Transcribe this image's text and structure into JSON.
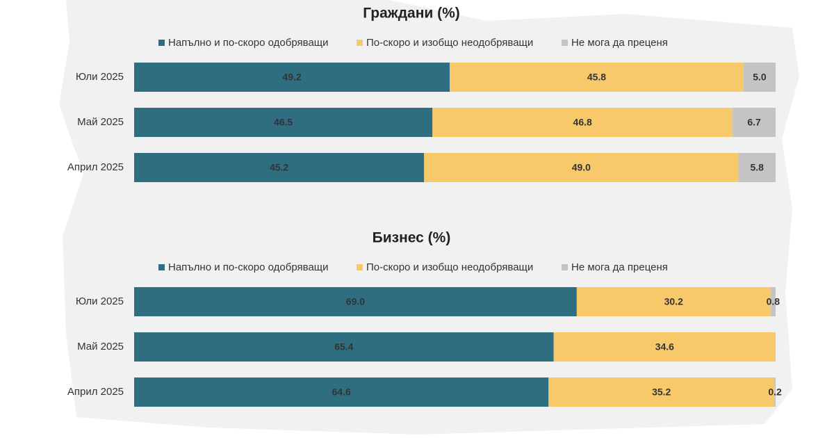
{
  "chart_data": [
    {
      "type": "bar",
      "orientation": "horizontal",
      "stacked": true,
      "title": "Граждани (%)",
      "categories": [
        "Юли 2025",
        "Май 2025",
        "Април 2025"
      ],
      "xlim": [
        0,
        100
      ],
      "series": [
        {
          "name": "Напълно и по-скоро одобряващи",
          "color": "#2e6e80",
          "values": [
            49.2,
            46.5,
            45.2
          ],
          "value_labels": [
            "49.2",
            "46.5",
            "45.2"
          ]
        },
        {
          "name": "По-скоро и изобщо неодобряващи",
          "color": "#f7c96b",
          "values": [
            45.8,
            46.8,
            49.0
          ],
          "value_labels": [
            "45.8",
            "46.8",
            "49.0"
          ]
        },
        {
          "name": "Не мога да преценя",
          "color": "#c4c4c4",
          "values": [
            5.0,
            6.7,
            5.8
          ],
          "value_labels": [
            "5.0",
            "6.7",
            "5.8"
          ]
        }
      ]
    },
    {
      "type": "bar",
      "orientation": "horizontal",
      "stacked": true,
      "title": "Бизнес (%)",
      "categories": [
        "Юли 2025",
        "Май 2025",
        "Април 2025"
      ],
      "xlim": [
        0,
        100
      ],
      "series": [
        {
          "name": "Напълно и по-скоро одобряващи",
          "color": "#2e6e80",
          "values": [
            69.0,
            65.4,
            64.6
          ],
          "value_labels": [
            "69.0",
            "65.4",
            "64.6"
          ]
        },
        {
          "name": "По-скоро и изобщо неодобряващи",
          "color": "#f7c96b",
          "values": [
            30.2,
            34.6,
            35.2
          ],
          "value_labels": [
            "30.2",
            "34.6",
            "35.2"
          ]
        },
        {
          "name": "Не мога да преценя",
          "color": "#c4c4c4",
          "values": [
            0.8,
            null,
            0.2
          ],
          "value_labels": [
            "0.8",
            null,
            "0.2"
          ]
        }
      ]
    }
  ]
}
